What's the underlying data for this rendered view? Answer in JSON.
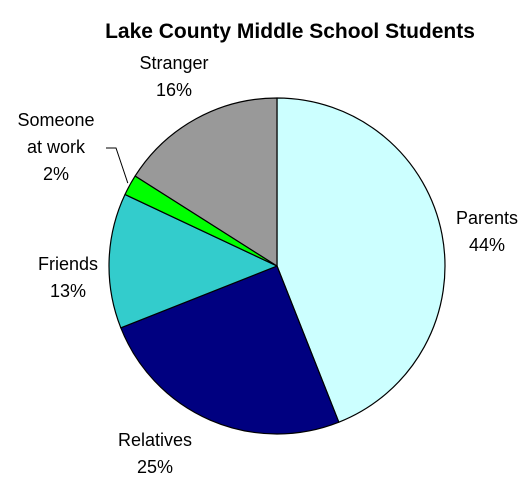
{
  "chart_data": {
    "type": "pie",
    "title": "Lake County Middle School Students",
    "slices": [
      {
        "label": "Parents",
        "value": 44,
        "display": "44%",
        "color": "#ccffff"
      },
      {
        "label": "Relatives",
        "value": 25,
        "display": "25%",
        "color": "#000080"
      },
      {
        "label": "Friends",
        "value": 13,
        "display": "13%",
        "color": "#33cccc"
      },
      {
        "label": "Someone at work",
        "label_lines": [
          "Someone",
          "at work"
        ],
        "value": 2,
        "display": "2%",
        "color": "#00ff00"
      },
      {
        "label": "Stranger",
        "value": 16,
        "display": "16%",
        "color": "#999999"
      }
    ]
  }
}
